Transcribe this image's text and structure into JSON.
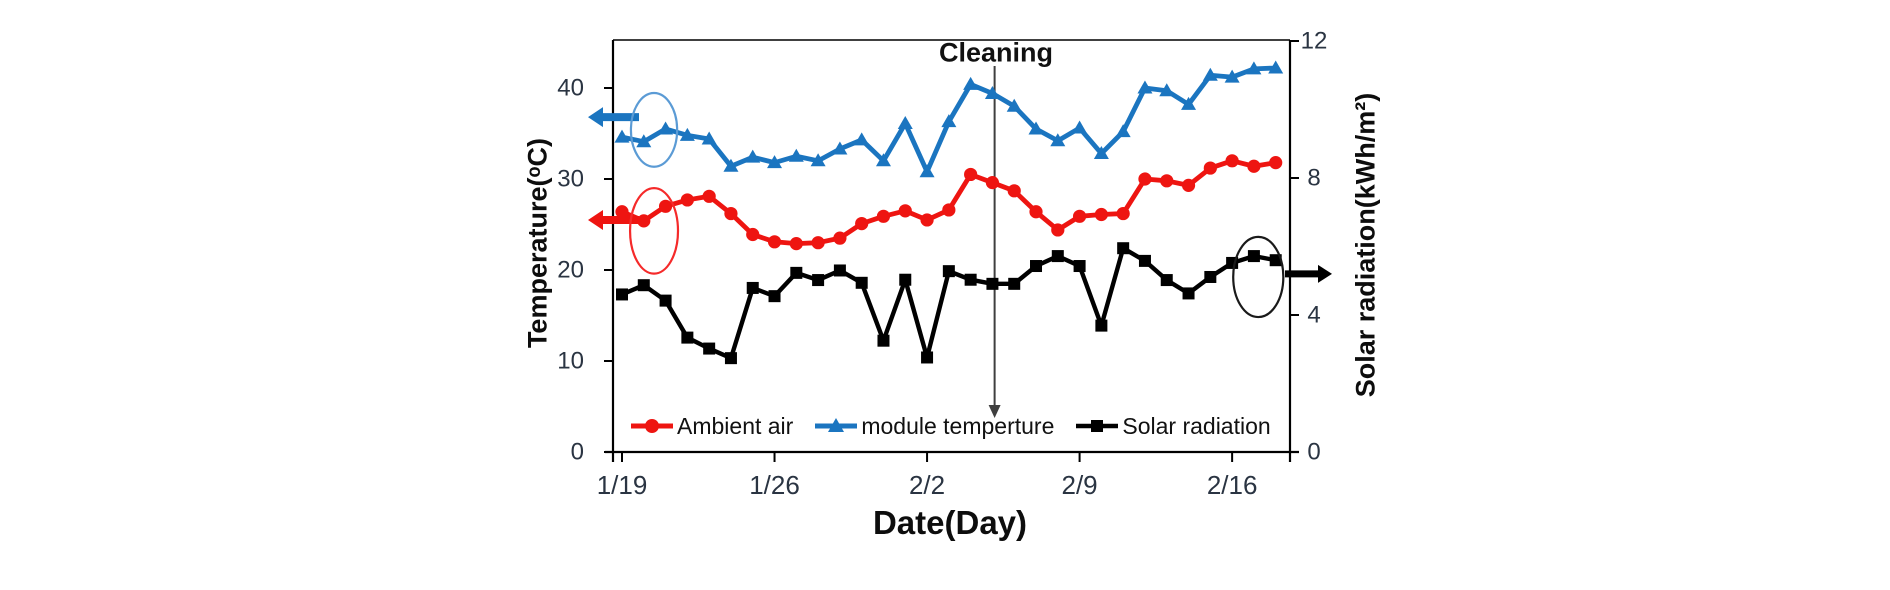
{
  "chart_data": {
    "type": "line",
    "xlabel": "Date(Day)",
    "ylabel_left": "Temperature(ᵒC)",
    "ylabel_right": "Solar radiation(kWh/m²)",
    "x_tick_labels": [
      "1/19",
      "1/26",
      "2/2",
      "2/9",
      "2/16"
    ],
    "x_tick_day_indices": [
      0,
      7,
      14,
      21,
      28
    ],
    "left_axis": {
      "min": 0,
      "max": 40,
      "ticks": [
        0,
        10,
        20,
        30,
        40
      ]
    },
    "right_axis": {
      "min": 0,
      "max": 12,
      "ticks": [
        0,
        4,
        8,
        12
      ]
    },
    "grid": "off",
    "legend_position": "bottom-inside",
    "dates": [
      "1/19",
      "1/20",
      "1/21",
      "1/22",
      "1/23",
      "1/24",
      "1/25",
      "1/26",
      "1/27",
      "1/28",
      "1/29",
      "1/30",
      "1/31",
      "2/1",
      "2/2",
      "2/3",
      "2/4",
      "2/5",
      "2/6",
      "2/7",
      "2/8",
      "2/9",
      "2/10",
      "2/11",
      "2/12",
      "2/13",
      "2/14",
      "2/15",
      "2/16",
      "2/17",
      "2/18"
    ],
    "series": [
      {
        "name": "Ambient air",
        "axis": "left",
        "color": "#ee1511",
        "marker": "circle",
        "values": [
          26.4,
          25.4,
          27.0,
          27.7,
          28.1,
          26.2,
          23.9,
          23.1,
          22.9,
          23.0,
          23.5,
          25.1,
          25.9,
          26.5,
          25.5,
          26.6,
          30.5,
          29.6,
          28.7,
          26.4,
          24.4,
          25.9,
          26.1,
          26.2,
          30.0,
          29.8,
          29.3,
          31.2,
          32.0,
          31.4,
          31.8
        ]
      },
      {
        "name": "module temperture",
        "axis": "left",
        "color": "#1b75c0",
        "marker": "triangle",
        "values": [
          34.6,
          34.1,
          35.5,
          34.8,
          34.4,
          31.4,
          32.4,
          31.8,
          32.5,
          32.0,
          33.3,
          34.3,
          32.0,
          36.1,
          30.8,
          36.3,
          40.4,
          39.4,
          38.0,
          35.5,
          34.2,
          35.6,
          32.8,
          35.2,
          40.0,
          39.7,
          38.2,
          41.4,
          41.2,
          42.1,
          42.2
        ]
      },
      {
        "name": "Solar radiation",
        "axis": "right",
        "color": "#000000",
        "marker": "square",
        "values": [
          4.6,
          4.87,
          4.42,
          3.34,
          3.02,
          2.74,
          4.79,
          4.55,
          5.23,
          5.02,
          5.3,
          4.94,
          3.25,
          5.03,
          2.76,
          5.28,
          5.03,
          4.91,
          4.91,
          5.43,
          5.72,
          5.43,
          3.69,
          5.95,
          5.58,
          5.02,
          4.63,
          5.11,
          5.52,
          5.72,
          5.6
        ]
      }
    ],
    "annotations": {
      "cleaning": {
        "label": "Cleaning",
        "day_index": 17.1,
        "line_color": "#3f3f3f"
      },
      "arrows": [
        {
          "id": "module-temperature-axis-arrow",
          "color": "#1b75c0",
          "direction": "left",
          "axis": "left",
          "at_value": 36.8
        },
        {
          "id": "ambient-air-axis-arrow",
          "color": "#ee1511",
          "direction": "left",
          "axis": "left",
          "at_value": 25.5
        },
        {
          "id": "solar-radiation-axis-arrow",
          "color": "#000000",
          "direction": "right",
          "axis": "right",
          "at_value": 5.2
        }
      ],
      "ellipses": [
        {
          "id": "module-temperature-start-ellipse",
          "color": "#5b9bd5",
          "axis": "left",
          "center_day": 1.47,
          "center_value": 35.4,
          "rx_days": 1.06,
          "ry_units": 4.05
        },
        {
          "id": "ambient-air-start-ellipse",
          "color": "#f52a2a",
          "axis": "left",
          "center_day": 1.47,
          "center_value": 24.3,
          "rx_days": 1.1,
          "ry_units": 4.7
        },
        {
          "id": "solar-radiation-end-ellipse",
          "color": "#1a1a1a",
          "axis": "right",
          "center_day": 29.2,
          "center_value": 5.11,
          "rx_days": 1.15,
          "ry_units": 1.17
        }
      ]
    }
  },
  "colors": {
    "axis_line": "#000000",
    "tick_label": "#2a3442",
    "background": "#ffffff"
  }
}
